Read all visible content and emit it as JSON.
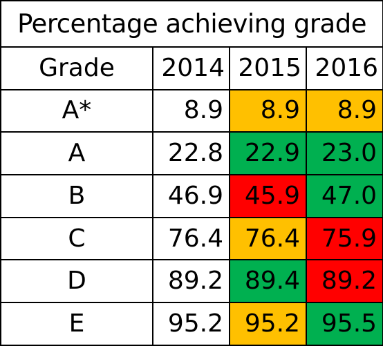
{
  "chart_data": {
    "type": "table",
    "title": "Percentage achieving grade",
    "columns": [
      "Grade",
      "2014",
      "2015",
      "2016"
    ],
    "rows": [
      {
        "grade": "A*",
        "values": [
          "8.9",
          "8.9",
          "8.9"
        ],
        "colors": [
          "",
          "#FFC000",
          "#FFC000"
        ]
      },
      {
        "grade": "A",
        "values": [
          "22.8",
          "22.9",
          "23.0"
        ],
        "colors": [
          "",
          "#00B050",
          "#00B050"
        ]
      },
      {
        "grade": "B",
        "values": [
          "46.9",
          "45.9",
          "47.0"
        ],
        "colors": [
          "",
          "#FF0000",
          "#00B050"
        ]
      },
      {
        "grade": "C",
        "values": [
          "76.4",
          "76.4",
          "75.9"
        ],
        "colors": [
          "",
          "#FFC000",
          "#FF0000"
        ]
      },
      {
        "grade": "D",
        "values": [
          "89.2",
          "89.4",
          "89.2"
        ],
        "colors": [
          "",
          "#00B050",
          "#FF0000"
        ]
      },
      {
        "grade": "E",
        "values": [
          "95.2",
          "95.2",
          "95.5"
        ],
        "colors": [
          "",
          "#FFC000",
          "#00B050"
        ]
      }
    ]
  }
}
